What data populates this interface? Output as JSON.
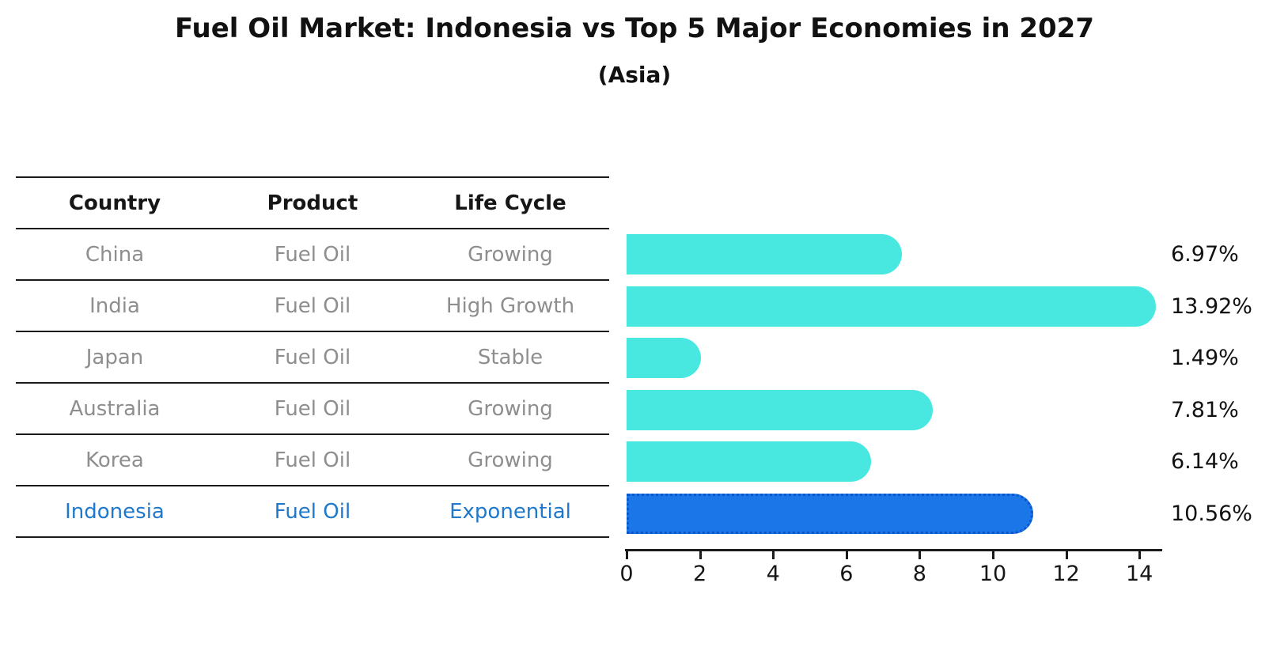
{
  "title": "Fuel Oil Market: Indonesia vs Top 5 Major Economies in 2027",
  "subtitle": "(Asia)",
  "table": {
    "headers": [
      "Country",
      "Product",
      "Life Cycle"
    ],
    "rows": [
      {
        "country": "China",
        "product": "Fuel Oil",
        "life_cycle": "Growing",
        "highlighted": false
      },
      {
        "country": "India",
        "product": "Fuel Oil",
        "life_cycle": "High Growth",
        "highlighted": false
      },
      {
        "country": "Japan",
        "product": "Fuel Oil",
        "life_cycle": "Stable",
        "highlighted": false
      },
      {
        "country": "Australia",
        "product": "Fuel Oil",
        "life_cycle": "Growing",
        "highlighted": false
      },
      {
        "country": "Korea",
        "product": "Fuel Oil",
        "life_cycle": "Growing",
        "highlighted": false
      },
      {
        "country": "Indonesia",
        "product": "Fuel Oil",
        "life_cycle": "Exponential",
        "highlighted": true
      }
    ]
  },
  "chart_data": {
    "type": "bar",
    "orientation": "horizontal",
    "title": "Fuel Oil Market: Indonesia vs Top 5 Major Economies in 2027",
    "subtitle": "(Asia)",
    "categories": [
      "China",
      "India",
      "Japan",
      "Australia",
      "Korea",
      "Indonesia"
    ],
    "values": [
      6.97,
      13.92,
      1.49,
      7.81,
      6.14,
      10.56
    ],
    "value_labels": [
      "6.97%",
      "13.92%",
      "1.49%",
      "7.81%",
      "6.14%",
      "10.56%"
    ],
    "xlabel": "",
    "ylabel": "",
    "xlim": [
      0,
      14.6
    ],
    "x_ticks": [
      0,
      2,
      4,
      6,
      8,
      10,
      12,
      14
    ],
    "grid": false,
    "legend": false,
    "bar_color": "#48e8e1",
    "highlight_color": "#1b76e8",
    "highlight_border_color": "#0a55cc",
    "highlight_index": 5,
    "highlight_text_color": "#1f78cb",
    "muted_text_color": "#8e8e8e"
  }
}
